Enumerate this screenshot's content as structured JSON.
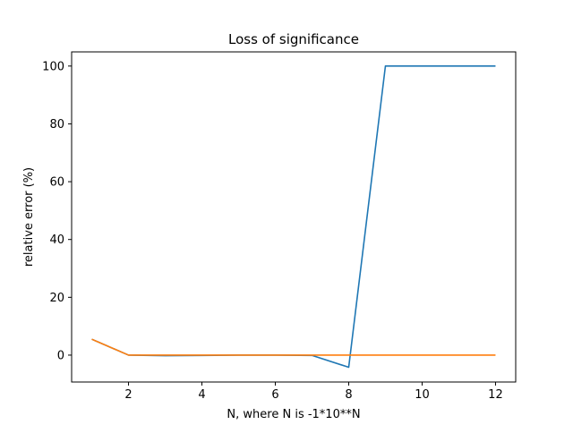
{
  "chart_data": {
    "type": "line",
    "title": "Loss of significance",
    "xlabel": "N, where N is -1*10**N",
    "ylabel": "relative error (%)",
    "xlim": [
      0.45,
      12.55
    ],
    "ylim": [
      -9.3,
      104.9
    ],
    "x": [
      1,
      2,
      3,
      4,
      5,
      6,
      7,
      8,
      9,
      10,
      11,
      12
    ],
    "x_ticks": [
      2,
      4,
      6,
      8,
      10,
      12
    ],
    "y_ticks": [
      0,
      20,
      40,
      60,
      80,
      100
    ],
    "grid": false,
    "legend": "none",
    "series": [
      {
        "color": "#1f77b4",
        "values": [
          5.5,
          0.0,
          -0.2,
          -0.1,
          0.0,
          0.0,
          -0.1,
          -4.2,
          100,
          100,
          100,
          100
        ]
      },
      {
        "color": "#ff7f0e",
        "values": [
          5.5,
          0.0,
          0.0,
          0.0,
          0.0,
          0.0,
          0.0,
          0.0,
          0.0,
          0.0,
          0.0,
          0.0
        ]
      }
    ]
  }
}
